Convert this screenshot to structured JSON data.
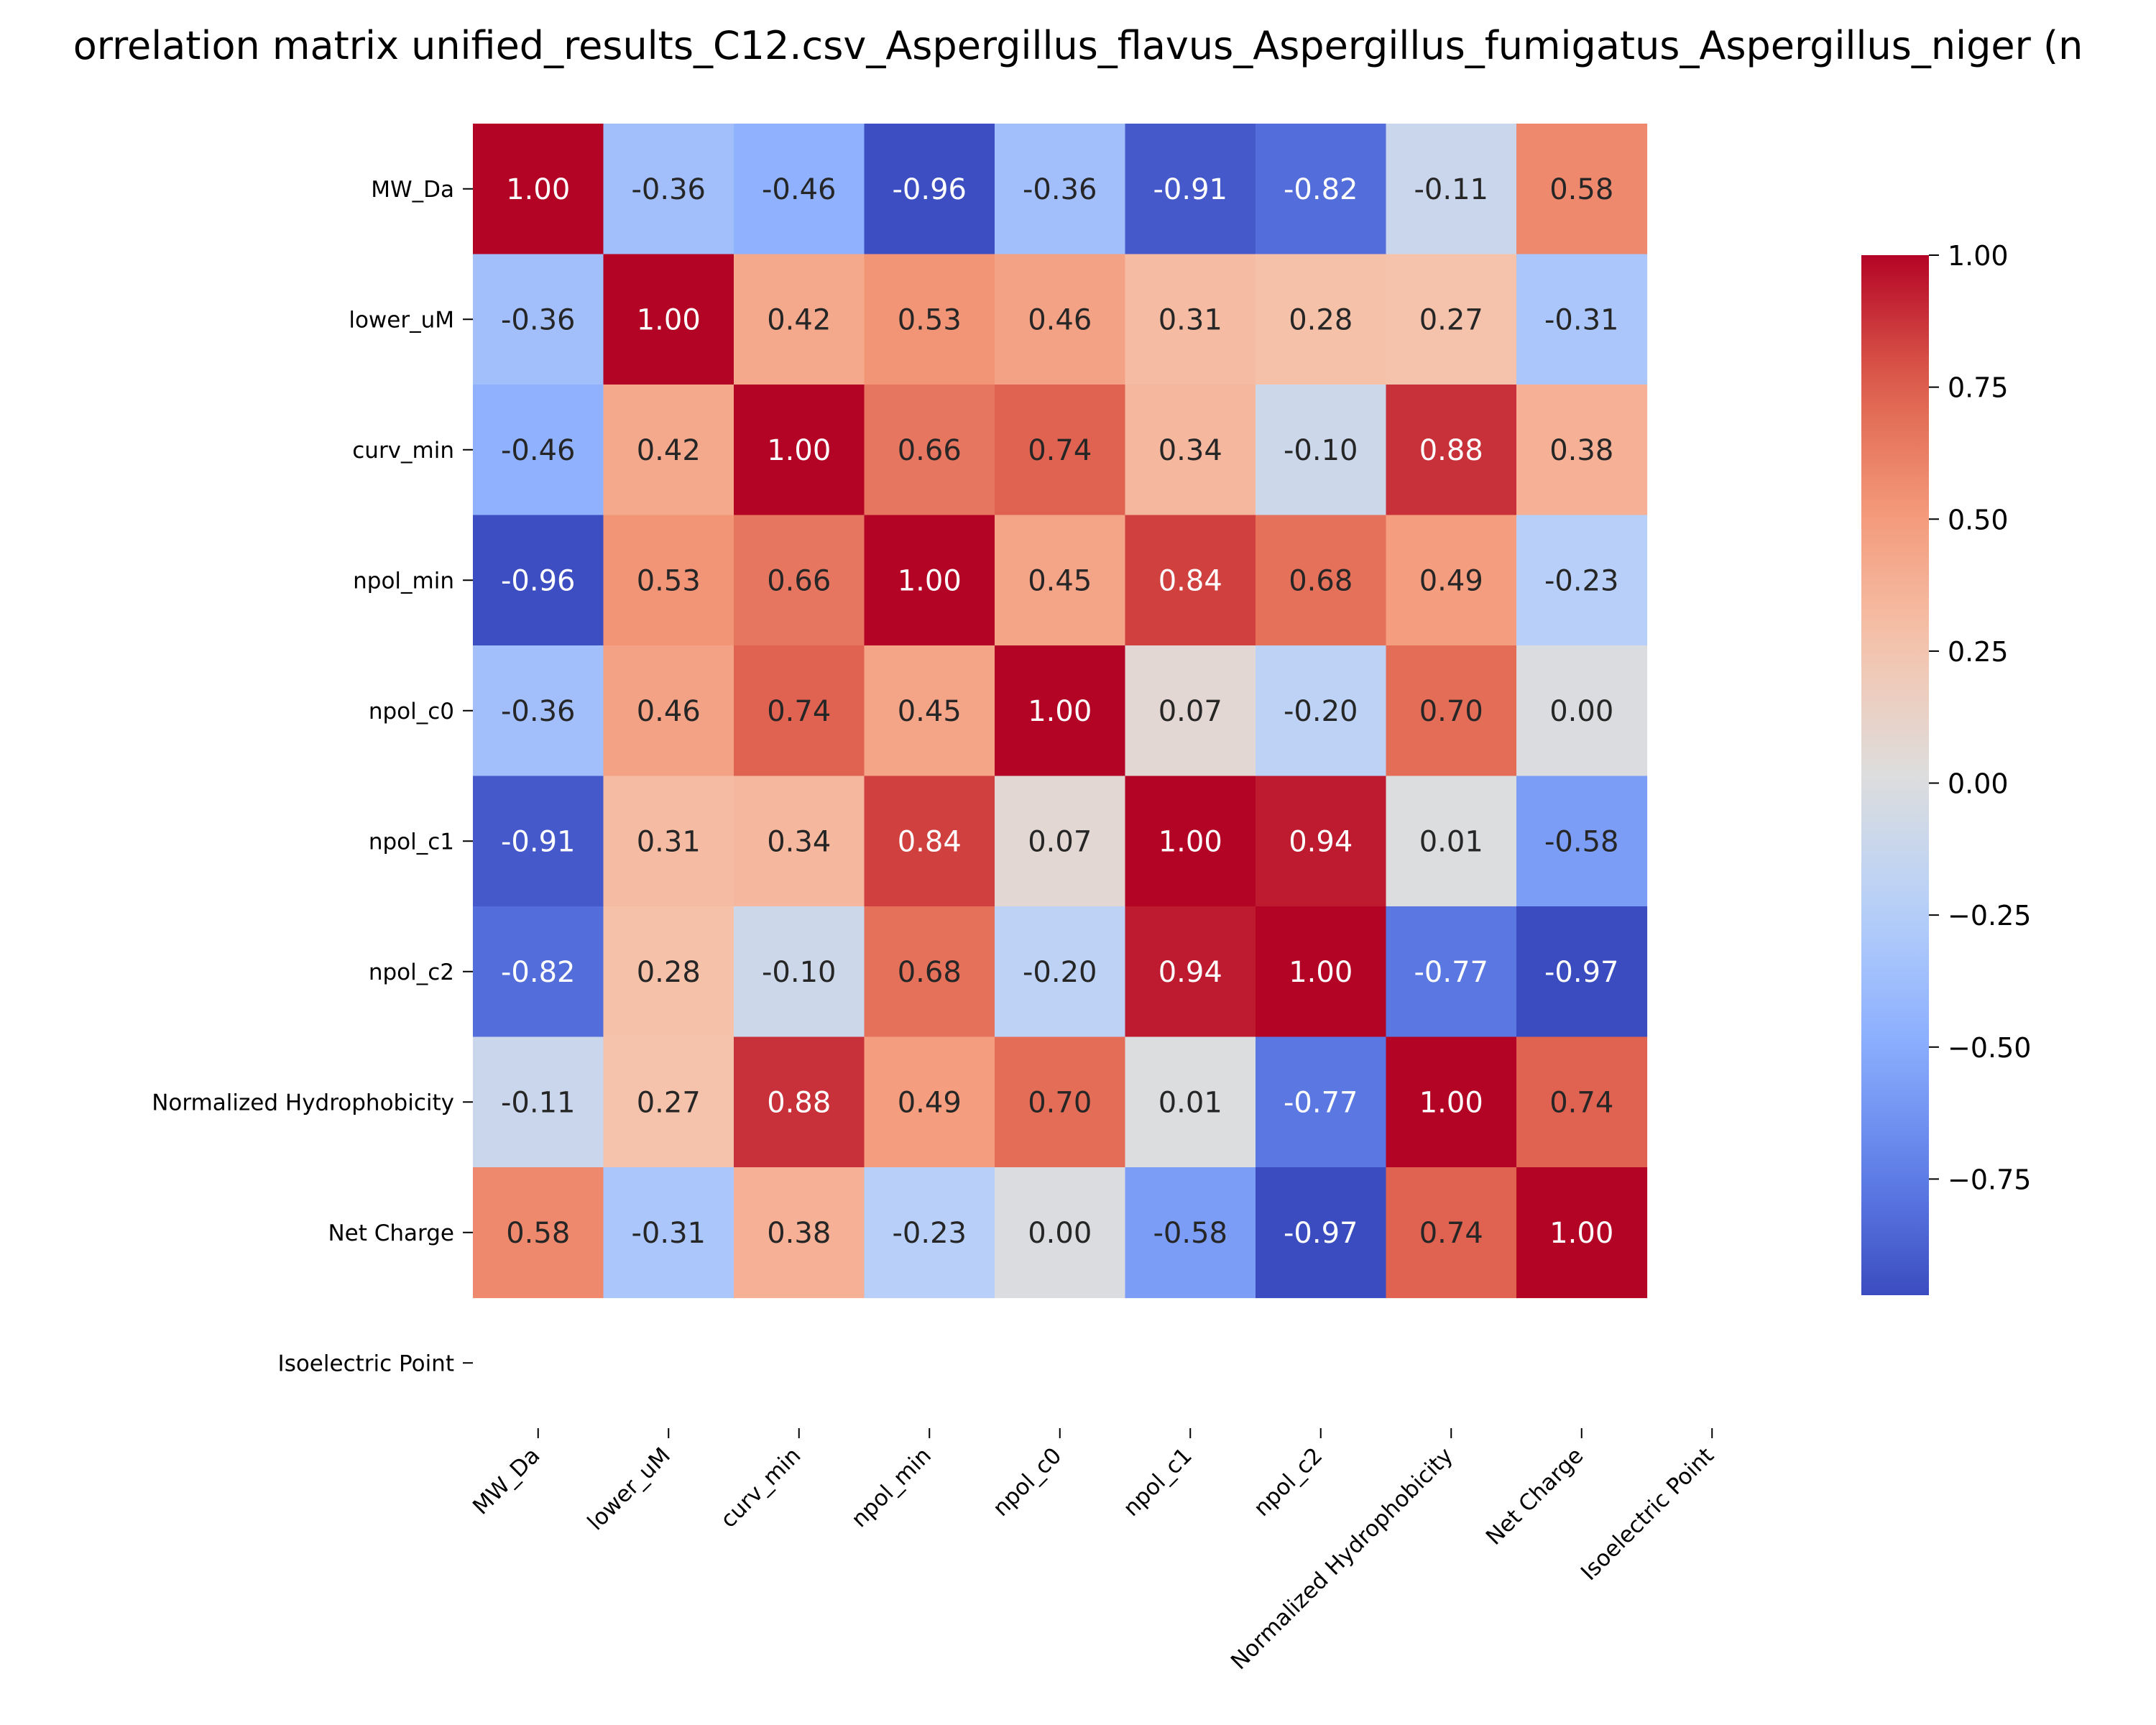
{
  "chart_data": {
    "type": "heatmap",
    "title": "orrelation matrix unified_results_C12.csv_Aspergillus_flavus_Aspergillus_fumigatus_Aspergillus_niger (n",
    "row_labels": [
      "MW_Da",
      "lower_uM",
      "curv_min",
      "npol_min",
      "npol_c0",
      "npol_c1",
      "npol_c2",
      "Normalized Hydrophobicity",
      "Net Charge",
      "Isoelectric Point"
    ],
    "column_labels": [
      "MW_Da",
      "lower_uM",
      "curv_min",
      "npol_min",
      "npol_c0",
      "npol_c1",
      "npol_c2",
      "Normalized Hydrophobicity",
      "Net Charge",
      "Isoelectric Point"
    ],
    "values": [
      [
        1.0,
        -0.36,
        -0.46,
        -0.96,
        -0.36,
        -0.91,
        -0.82,
        -0.11,
        0.58,
        null
      ],
      [
        -0.36,
        1.0,
        0.42,
        0.53,
        0.46,
        0.31,
        0.28,
        0.27,
        -0.31,
        null
      ],
      [
        -0.46,
        0.42,
        1.0,
        0.66,
        0.74,
        0.34,
        -0.1,
        0.88,
        0.38,
        null
      ],
      [
        -0.96,
        0.53,
        0.66,
        1.0,
        0.45,
        0.84,
        0.68,
        0.49,
        -0.23,
        null
      ],
      [
        -0.36,
        0.46,
        0.74,
        0.45,
        1.0,
        0.07,
        -0.2,
        0.7,
        0.0,
        null
      ],
      [
        -0.91,
        0.31,
        0.34,
        0.84,
        0.07,
        1.0,
        0.94,
        0.01,
        -0.58,
        null
      ],
      [
        -0.82,
        0.28,
        -0.1,
        0.68,
        -0.2,
        0.94,
        1.0,
        -0.77,
        -0.97,
        null
      ],
      [
        -0.11,
        0.27,
        0.88,
        0.49,
        0.7,
        0.01,
        -0.77,
        1.0,
        0.74,
        null
      ],
      [
        0.58,
        -0.31,
        0.38,
        -0.23,
        0.0,
        -0.58,
        -0.97,
        0.74,
        1.0,
        null
      ],
      [
        null,
        null,
        null,
        null,
        null,
        null,
        null,
        null,
        null,
        null
      ]
    ],
    "colormap": "coolwarm",
    "color_range": [
      -0.97,
      1.0
    ],
    "colorbar_ticks": [
      "1.00",
      "0.75",
      "0.50",
      "0.25",
      "0.00",
      "−0.25",
      "−0.50",
      "−0.75"
    ],
    "colorbar_tick_values": [
      1.0,
      0.75,
      0.5,
      0.25,
      0.0,
      -0.25,
      -0.5,
      -0.75
    ],
    "annotation_format": "0.00",
    "legend_placement": "right",
    "grid": false
  }
}
